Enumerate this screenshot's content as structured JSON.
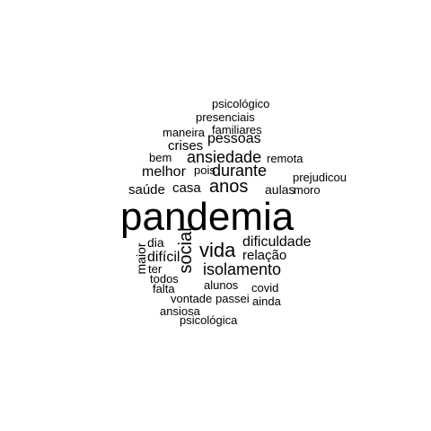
{
  "word_cloud": {
    "text_color": "#000000",
    "background": "#ffffff",
    "words": [
      {
        "text": "pandemia",
        "weight": 10
      },
      {
        "text": "social",
        "weight": 5
      },
      {
        "text": "vida",
        "weight": 5
      },
      {
        "text": "anos",
        "weight": 5
      },
      {
        "text": "isolamento",
        "weight": 4
      },
      {
        "text": "ansiedade",
        "weight": 4
      },
      {
        "text": "durante",
        "weight": 4
      },
      {
        "text": "dificuldade",
        "weight": 3
      },
      {
        "text": "pessoas",
        "weight": 3
      },
      {
        "text": "melhor",
        "weight": 3
      },
      {
        "text": "casa",
        "weight": 3
      },
      {
        "text": "crises",
        "weight": 3
      },
      {
        "text": "saúde",
        "weight": 3
      },
      {
        "text": "difícil",
        "weight": 3
      },
      {
        "text": "relação",
        "weight": 3
      },
      {
        "text": "maior",
        "weight": 2
      },
      {
        "text": "pois",
        "weight": 2
      },
      {
        "text": "aulas",
        "weight": 2
      },
      {
        "text": "moro",
        "weight": 2
      },
      {
        "text": "prejudicou",
        "weight": 2
      },
      {
        "text": "remota",
        "weight": 2
      },
      {
        "text": "bem",
        "weight": 2
      },
      {
        "text": "dia",
        "weight": 2
      },
      {
        "text": "maneira",
        "weight": 2
      },
      {
        "text": "familiares",
        "weight": 2
      },
      {
        "text": "presenciais",
        "weight": 2
      },
      {
        "text": "psicológico",
        "weight": 2
      },
      {
        "text": "ter",
        "weight": 2
      },
      {
        "text": "todos",
        "weight": 2
      },
      {
        "text": "falta",
        "weight": 2
      },
      {
        "text": "alunos",
        "weight": 2
      },
      {
        "text": "covid",
        "weight": 2
      },
      {
        "text": "vontade",
        "weight": 2
      },
      {
        "text": "passei",
        "weight": 2
      },
      {
        "text": "ainda",
        "weight": 2
      },
      {
        "text": "ansiosa",
        "weight": 2
      },
      {
        "text": "psicológica",
        "weight": 2
      }
    ]
  }
}
